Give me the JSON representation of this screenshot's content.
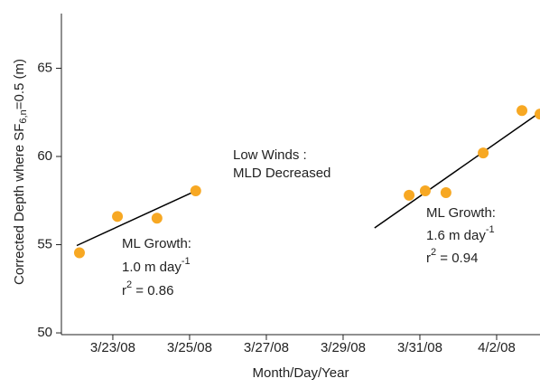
{
  "chart_data": {
    "type": "scatter",
    "x_label": "Month/Day/Year",
    "y_label": {
      "pre": "Corrected Depth where SF",
      "sub": "6,n",
      "post": "=0.5 (m)"
    },
    "series": [
      {
        "color": "#f7a823",
        "x": [
          22.13,
          23.12,
          24.15,
          25.16,
          30.72,
          31.14,
          31.68,
          32.65,
          33.66,
          34.13
        ],
        "values": [
          54.54,
          56.6,
          56.5,
          58.05,
          57.8,
          58.05,
          57.95,
          60.2,
          62.6,
          62.4
        ]
      }
    ],
    "fits": [
      {
        "x": [
          22.06,
          25.16
        ],
        "y": [
          54.95,
          58.05
        ]
      },
      {
        "x": [
          29.82,
          34.13
        ],
        "y": [
          55.95,
          62.5
        ]
      }
    ],
    "annotations": [
      {
        "lines": [
          {
            "base": "Low Winds :"
          },
          {
            "base": "MLD Decreased"
          }
        ]
      },
      {
        "lines": [
          {
            "base": "ML Growth:"
          },
          {
            "base": "1.0 m day",
            "sup": "-1"
          },
          {
            "base": "r",
            "sup": "2",
            "rest": " = 0.86"
          }
        ]
      },
      {
        "lines": [
          {
            "base": "ML Growth:"
          },
          {
            "base": "1.6 m day",
            "sup": "-1"
          },
          {
            "base": "r",
            "sup": "2",
            "rest": " = 0.94"
          }
        ]
      }
    ],
    "xlim": [
      21.66,
      34.13
    ],
    "xticks": [
      {
        "value": 23,
        "label": "3/23/08"
      },
      {
        "value": 25,
        "label": "3/25/08"
      },
      {
        "value": 27,
        "label": "3/27/08"
      },
      {
        "value": 29,
        "label": "3/29/08"
      },
      {
        "value": 31,
        "label": "3/31/08"
      },
      {
        "value": 33,
        "label": "4/2/08"
      }
    ],
    "ylim": [
      49.9,
      68.1
    ],
    "yticks": [
      50,
      55,
      60,
      65
    ]
  }
}
